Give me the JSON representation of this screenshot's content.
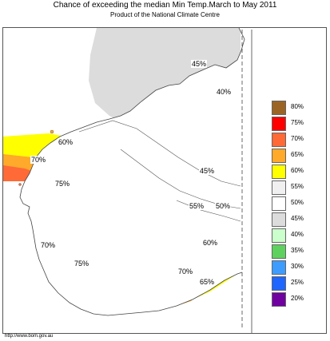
{
  "title": "Chance of exceeding the median Min Temp.March to May 2011",
  "subtitle": "Product of the National Climate Centre",
  "footer_url": "http://www.bom.gov.au",
  "contour_labels": [
    {
      "text": "45%"
    },
    {
      "text": "40%"
    },
    {
      "text": "60%"
    },
    {
      "text": "70%"
    },
    {
      "text": "75%"
    },
    {
      "text": "45%"
    },
    {
      "text": "55%"
    },
    {
      "text": "50%"
    },
    {
      "text": "60%"
    },
    {
      "text": "70%"
    },
    {
      "text": "75%"
    },
    {
      "text": "70%"
    },
    {
      "text": "65%"
    }
  ],
  "legend": [
    {
      "label": "80%",
      "color": "#9b6424"
    },
    {
      "label": "75%",
      "color": "#ff0000"
    },
    {
      "label": "70%",
      "color": "#ff6a37"
    },
    {
      "label": "65%",
      "color": "#ffaa2a"
    },
    {
      "label": "60%",
      "color": "#ffff00"
    },
    {
      "label": "55%",
      "color": "#f0f0f0"
    },
    {
      "label": "50%",
      "color": "#ffffff"
    },
    {
      "label": "45%",
      "color": "#dcdcdc"
    },
    {
      "label": "40%",
      "color": "#cbffcb"
    },
    {
      "label": "35%",
      "color": "#5fd15f"
    },
    {
      "label": "30%",
      "color": "#3e9cff"
    },
    {
      "label": "25%",
      "color": "#1f66ff"
    },
    {
      "label": "20%",
      "color": "#7000a0"
    }
  ]
}
